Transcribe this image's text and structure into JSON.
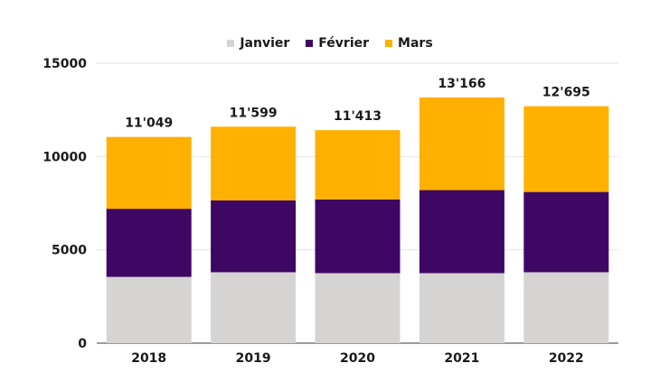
{
  "chart_data": {
    "type": "bar",
    "stacked": true,
    "categories": [
      "2018",
      "2019",
      "2020",
      "2021",
      "2022"
    ],
    "series": [
      {
        "name": "Janvier",
        "color": "#d6d4d2",
        "values": [
          3550,
          3800,
          3750,
          3750,
          3800
        ]
      },
      {
        "name": "Février",
        "color": "#3f0764",
        "values": [
          3650,
          3850,
          3950,
          4450,
          4300
        ]
      },
      {
        "name": "Mars",
        "color": "#ffb000",
        "values": [
          3849,
          3949,
          3713,
          4966,
          4595
        ]
      }
    ],
    "totals": [
      "11'049",
      "11'599",
      "11'413",
      "13'166",
      "12'695"
    ],
    "yticks": [
      "0",
      "5000",
      "10000",
      "15000"
    ],
    "ylim": [
      0,
      15000
    ],
    "legend": "top-center",
    "grid": true
  }
}
